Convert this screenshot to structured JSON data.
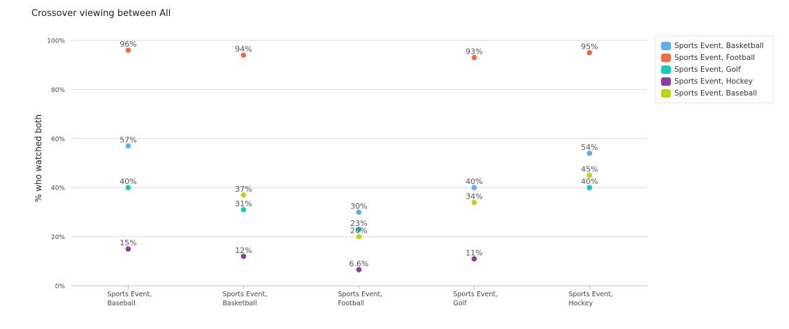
{
  "title": "Crossover viewing between All",
  "chart_data": {
    "type": "scatter",
    "title": "Crossover viewing between All",
    "ylabel": "% who watched both",
    "xlabel": "",
    "ylim": [
      0,
      100
    ],
    "yticks": [
      "0%",
      "20%",
      "40%",
      "60%",
      "80%",
      "100%"
    ],
    "categories": [
      [
        "Sports Event,",
        "Baseball"
      ],
      [
        "Sports Event,",
        "Basketball"
      ],
      [
        "Sports Event,",
        "Football"
      ],
      [
        "Sports Event,",
        "Golf"
      ],
      [
        "Sports Event,",
        "Hockey"
      ]
    ],
    "grid": true,
    "legend_position": "top-right",
    "series": [
      {
        "name": "Sports Event, Basketball",
        "color": "#5eaef5",
        "values": [
          57,
          null,
          30,
          40,
          54
        ],
        "labels": [
          "57%",
          "",
          "30%",
          "40%",
          "54%"
        ]
      },
      {
        "name": "Sports Event, Football",
        "color": "#f46a45",
        "values": [
          96,
          94,
          null,
          93,
          95
        ],
        "labels": [
          "96%",
          "94%",
          "",
          "93%",
          "95%"
        ]
      },
      {
        "name": "Sports Event, Golf",
        "color": "#15c9bd",
        "values": [
          40,
          31,
          23,
          null,
          40
        ],
        "labels": [
          "40%",
          "31%",
          "23%",
          "",
          "40%"
        ]
      },
      {
        "name": "Sports Event, Hockey",
        "color": "#8e3aa0",
        "values": [
          15,
          12,
          6.6,
          11,
          null
        ],
        "labels": [
          "15%",
          "12%",
          "6.6%",
          "11%",
          ""
        ]
      },
      {
        "name": "Sports Event, Baseball",
        "color": "#b6d610",
        "values": [
          null,
          37,
          20,
          34,
          45
        ],
        "labels": [
          "",
          "37%",
          "20%",
          "34%",
          "45%"
        ]
      }
    ]
  }
}
